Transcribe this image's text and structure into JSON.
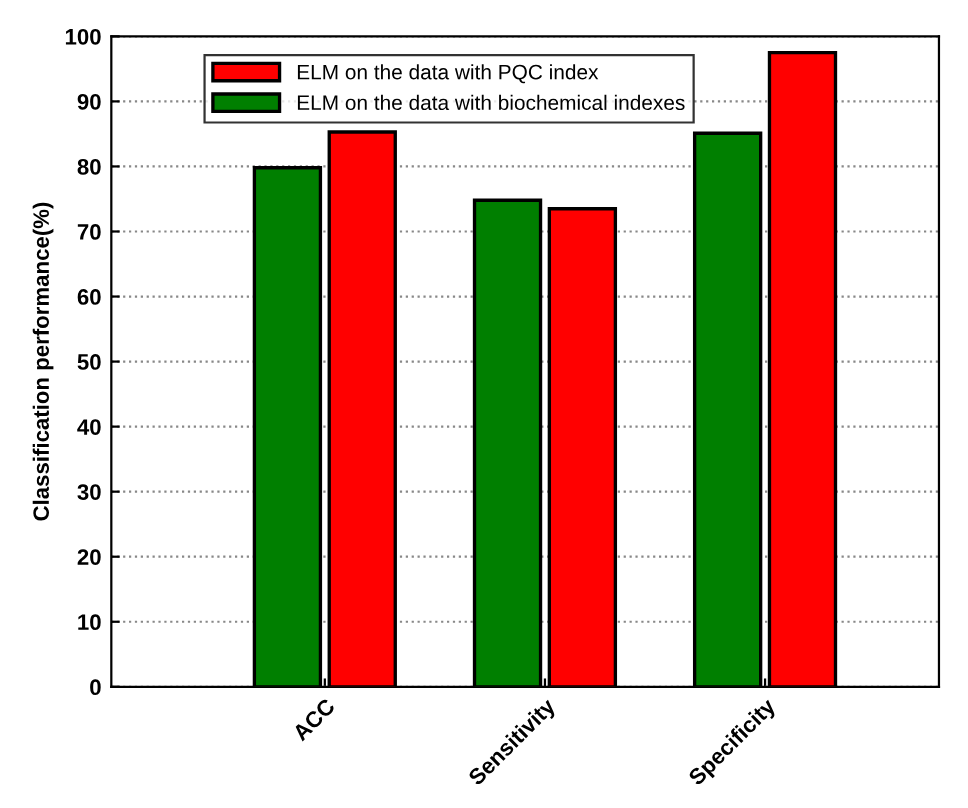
{
  "chart_data": {
    "type": "bar",
    "ylabel": "Classification performance(%)",
    "categories": [
      "ACC",
      "Sensitivity",
      "Specificity"
    ],
    "series": [
      {
        "name": "ELM on the data with PQC index",
        "color": "#ff0000",
        "values": [
          85.3,
          73.5,
          97.5
        ]
      },
      {
        "name": "ELM on the data with biochemical indexes",
        "color": "#007f00",
        "values": [
          79.8,
          74.8,
          85.1
        ]
      }
    ],
    "ylim": [
      0,
      100
    ],
    "yticks": [
      0,
      10,
      20,
      30,
      40,
      50,
      60,
      70,
      80,
      90,
      100
    ],
    "grid": "y",
    "legend": "top left"
  }
}
